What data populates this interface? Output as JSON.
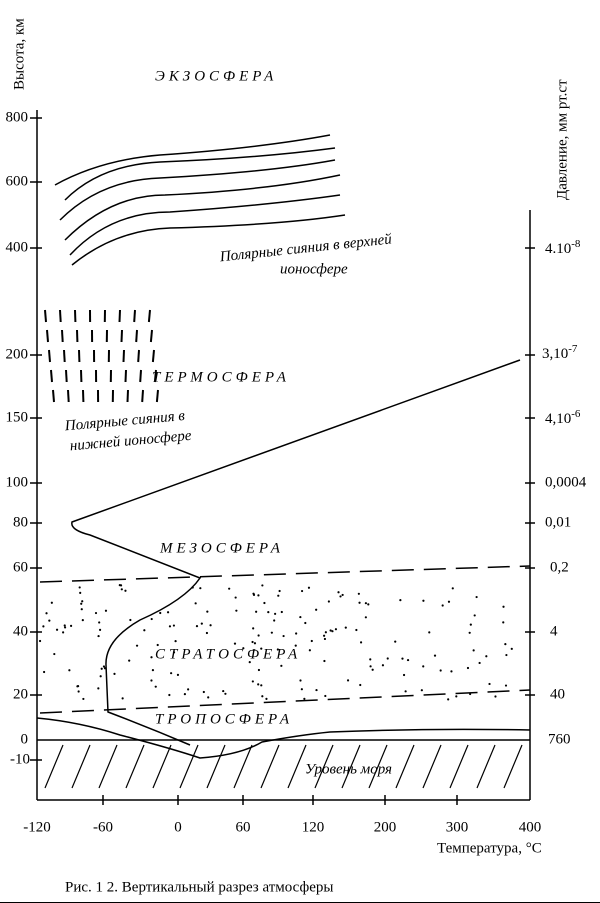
{
  "y_axis_title": "Высота, км",
  "y2_axis_title": "Давление, мм рт.ст",
  "x_axis_title": "Температура,  °С",
  "left_ticks": [
    "800",
    "600",
    "400",
    "200",
    "150",
    "100",
    "80",
    "60",
    "40",
    "20",
    "0",
    "-10"
  ],
  "right_ticks": [
    {
      "base": "4.10",
      "exp": "-8"
    },
    {
      "base": "3,10",
      "exp": "-7"
    },
    {
      "base": "4,10",
      "exp": "-6"
    },
    "0,0004",
    "0,01",
    "0,2",
    "4",
    "40",
    "760"
  ],
  "bottom_ticks": [
    "-120",
    "-60",
    "0",
    "60",
    "120",
    "200",
    "300",
    "400"
  ],
  "layers": [
    "ЭКЗОСФЕРА",
    "ТЕРМОСФЕРА",
    "МЕЗОСФЕРА",
    "СТРАТОСФЕРА",
    "ТРОПОСФЕРА"
  ],
  "upper_aurora": [
    "Полярные сияния в верхней",
    "ионосфере"
  ],
  "lower_aurora": [
    "Полярные сияния в",
    "нижней ионосфере"
  ],
  "sea_level": "Уровень моря",
  "caption": "Рис. 1 2. Вертикальный разрез атмосферы"
}
